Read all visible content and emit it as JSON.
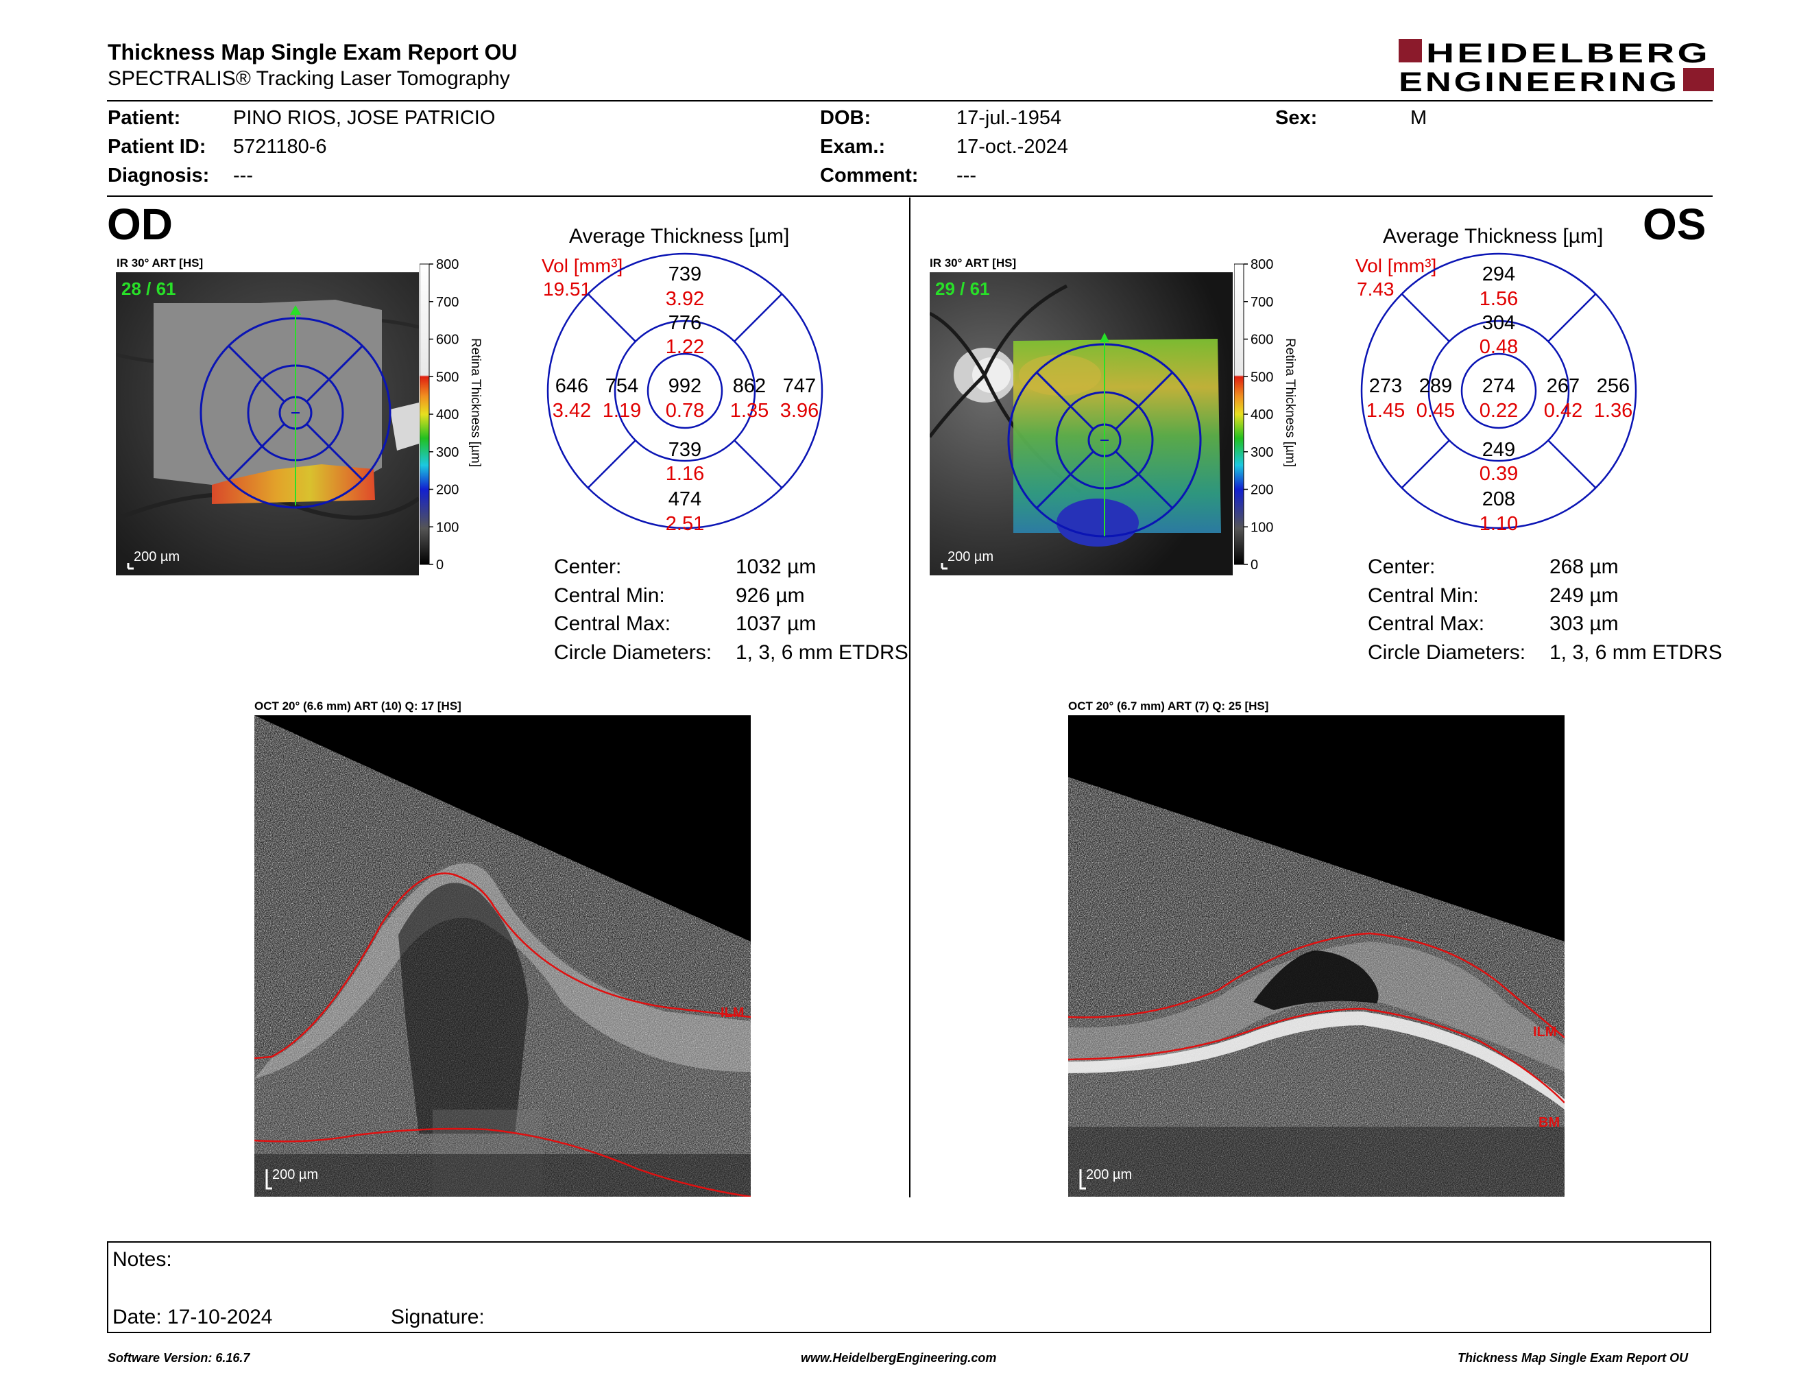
{
  "header": {
    "title": "Thickness Map Single Exam Report OU",
    "subtitle": "SPECTRALIS® Tracking Laser Tomography",
    "logo_line1": "HEIDELBERG",
    "logo_line2": "ENGINEERING",
    "brand_color": "#8b1a2b"
  },
  "patient": {
    "patient_label": "Patient:",
    "patient_value": "PINO RIOS, JOSE PATRICIO",
    "id_label": "Patient ID:",
    "id_value": "5721180-6",
    "diagnosis_label": "Diagnosis:",
    "diagnosis_value": "---",
    "dob_label": "DOB:",
    "dob_value": "17-jul.-1954",
    "exam_label": "Exam.:",
    "exam_value": "17-oct.-2024",
    "comment_label": "Comment:",
    "comment_value": "---",
    "sex_label": "Sex:",
    "sex_value": "M"
  },
  "od": {
    "eye_label": "OD",
    "ir_title": "IR 30° ART [HS]",
    "slice": "28 / 61",
    "scale_label": "200 µm",
    "colorbar_ticks": [
      "800",
      "700",
      "600",
      "500",
      "400",
      "300",
      "200",
      "100",
      "0"
    ],
    "colorbar_title": "Retina  Thickness [µm]",
    "avg_title": "Average Thickness [µm]",
    "vol_label": "Vol [mm³]",
    "vol_value": "19.51",
    "etdrs": {
      "outer_sup": "739",
      "outer_sup_vol": "3.92",
      "inner_sup": "776",
      "inner_sup_vol": "1.22",
      "outer_temp": "646",
      "outer_temp_vol": "3.42",
      "inner_temp": "754",
      "inner_temp_vol": "1.19",
      "center": "992",
      "center_vol": "0.78",
      "inner_nas": "862",
      "inner_nas_vol": "1.35",
      "outer_nas": "747",
      "outer_nas_vol": "3.96",
      "inner_inf": "739",
      "inner_inf_vol": "1.16",
      "outer_inf": "474",
      "outer_inf_vol": "2.51"
    },
    "stats": {
      "center_label": "Center:",
      "center_value": "1032 µm",
      "min_label": "Central Min:",
      "min_value": "926 µm",
      "max_label": "Central Max:",
      "max_value": "1037 µm",
      "diam_label": "Circle Diameters:",
      "diam_value": "1, 3, 6 mm ETDRS"
    },
    "oct_title": "OCT 20° (6.6 mm) ART (10) Q: 17 [HS]",
    "oct_scale": "200 µm",
    "ilm_label": "ILM"
  },
  "os": {
    "eye_label": "OS",
    "ir_title": "IR 30° ART [HS]",
    "slice": "29 / 61",
    "scale_label": "200 µm",
    "colorbar_ticks": [
      "800",
      "700",
      "600",
      "500",
      "400",
      "300",
      "200",
      "100",
      "0"
    ],
    "colorbar_title": "Retina  Thickness [µm]",
    "avg_title": "Average Thickness [µm]",
    "vol_label": "Vol [mm³]",
    "vol_value": "7.43",
    "etdrs": {
      "outer_sup": "294",
      "outer_sup_vol": "1.56",
      "inner_sup": "304",
      "inner_sup_vol": "0.48",
      "outer_temp": "273",
      "outer_temp_vol": "1.45",
      "inner_temp": "289",
      "inner_temp_vol": "0.45",
      "center": "274",
      "center_vol": "0.22",
      "inner_nas": "267",
      "inner_nas_vol": "0.42",
      "outer_nas": "256",
      "outer_nas_vol": "1.36",
      "inner_inf": "249",
      "inner_inf_vol": "0.39",
      "outer_inf": "208",
      "outer_inf_vol": "1.10"
    },
    "stats": {
      "center_label": "Center:",
      "center_value": "268 µm",
      "min_label": "Central Min:",
      "min_value": "249 µm",
      "max_label": "Central Max:",
      "max_value": "303 µm",
      "diam_label": "Circle Diameters:",
      "diam_value": "1, 3, 6 mm ETDRS"
    },
    "oct_title": "OCT 20° (6.7 mm) ART (7) Q: 25 [HS]",
    "oct_scale": "200 µm",
    "ilm_label": "ILM",
    "bm_label": "BM"
  },
  "notes": {
    "notes_label": "Notes:",
    "date_label": "Date: 17-10-2024",
    "signature_label": "Signature:"
  },
  "footer": {
    "version": "Software Version: 6.16.7",
    "url": "www.HeidelbergEngineering.com",
    "report": "Thickness Map Single Exam Report OU"
  }
}
